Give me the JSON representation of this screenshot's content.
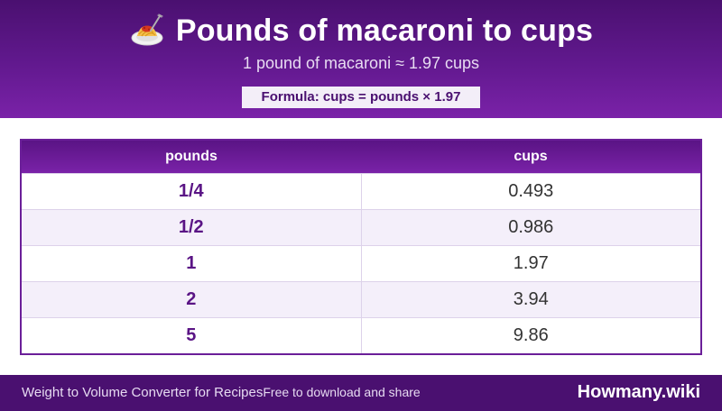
{
  "header": {
    "icon": "spaghetti-plate-icon",
    "title": "Pounds of macaroni to cups",
    "subtitle": "1 pound of macaroni ≈ 1.97 cups",
    "formula": "Formula: cups = pounds × 1.97"
  },
  "table": {
    "columns": [
      "pounds",
      "cups"
    ],
    "rows": [
      [
        "1/4",
        "0.493"
      ],
      [
        "1/2",
        "0.986"
      ],
      [
        "1",
        "1.97"
      ],
      [
        "2",
        "3.94"
      ],
      [
        "5",
        "9.86"
      ]
    ]
  },
  "footer": {
    "left_text": "Weight to Volume Converter for Recipes",
    "left_sub": "Free to download and share",
    "brand": "Howmany.wiki"
  },
  "colors": {
    "primary": "#4a1070",
    "accent": "#7a22a8",
    "row_alt": "#f4effa"
  }
}
